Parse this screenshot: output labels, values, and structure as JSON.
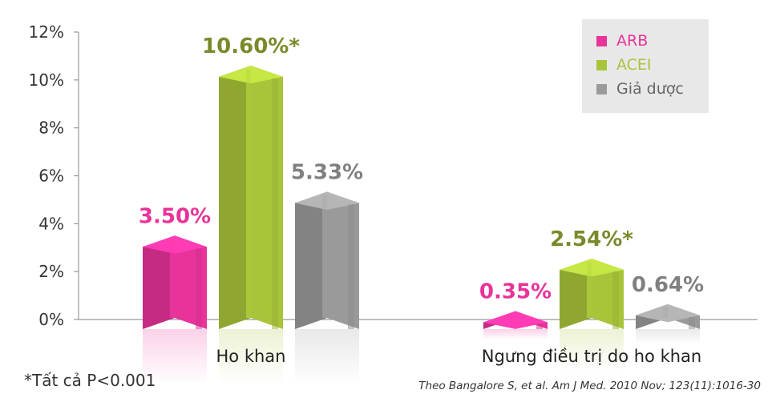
{
  "chart_data": {
    "type": "bar",
    "categories": [
      "Ho khan",
      "Ngưng điều trị do ho khan"
    ],
    "series": [
      {
        "name": "ARB",
        "color": "#e8339a",
        "values": [
          3.5,
          0.35
        ],
        "labels": [
          "3.50%",
          "0.35%"
        ]
      },
      {
        "name": "ACEI",
        "color": "#a8c43a",
        "values": [
          10.6,
          2.54
        ],
        "labels": [
          "10.60%*",
          "2.54%*"
        ]
      },
      {
        "name": "Giả dược",
        "color": "#9a9a9a",
        "values": [
          5.33,
          0.64
        ],
        "labels": [
          "5.33%",
          "0.64%"
        ]
      }
    ],
    "yticks": [
      "0%",
      "2%",
      "4%",
      "6%",
      "8%",
      "10%",
      "12%"
    ],
    "ylim": [
      0,
      12
    ],
    "legend_position": "top-right",
    "label_colors": [
      "#e8339a",
      "#7a8a2a",
      "#808080"
    ]
  },
  "footnote": "*Tất cả P<0.001",
  "source": "Theo Bangalore S, et al. Am J Med. 2010 Nov; 123(11):1016-30"
}
